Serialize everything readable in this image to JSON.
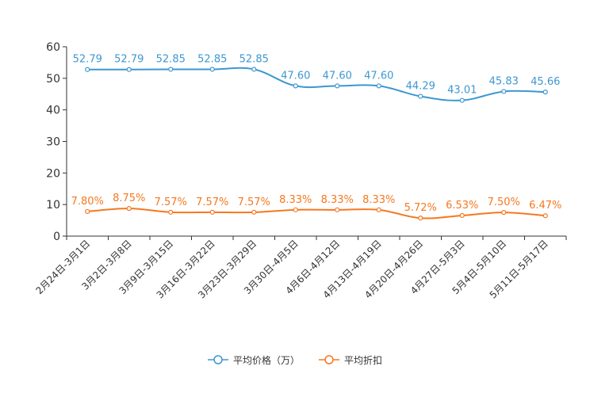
{
  "chart_data": {
    "type": "line",
    "categories": [
      "2月24日-3月1日",
      "3月2日-3月8日",
      "3月9日-3月15日",
      "3月16日-3月22日",
      "3月23日-3月29日",
      "3月30日-4月5日",
      "4月6日-4月12日",
      "4月13日-4月19日",
      "4月20日-4月26日",
      "4月27日-5月3日",
      "5月4日-5月10日",
      "5月11日-5月17日"
    ],
    "series": [
      {
        "name": "平均价格（万）",
        "color": "#3d97d1",
        "values": [
          52.79,
          52.79,
          52.85,
          52.85,
          52.85,
          47.6,
          47.6,
          47.6,
          44.29,
          43.01,
          45.83,
          45.66
        ],
        "labels": [
          "52.79",
          "52.79",
          "52.85",
          "52.85",
          "52.85",
          "47.60",
          "47.60",
          "47.60",
          "44.29",
          "43.01",
          "45.83",
          "45.66"
        ]
      },
      {
        "name": "平均折扣",
        "color": "#f5781f",
        "values": [
          7.8,
          8.75,
          7.57,
          7.57,
          7.57,
          8.33,
          8.33,
          8.33,
          5.72,
          6.53,
          7.5,
          6.47
        ],
        "labels": [
          "7.80%",
          "8.75%",
          "7.57%",
          "7.57%",
          "7.57%",
          "8.33%",
          "8.33%",
          "8.33%",
          "5.72%",
          "6.53%",
          "7.50%",
          "6.47%"
        ]
      }
    ],
    "ylim": [
      0,
      60
    ],
    "yticks": [
      0,
      10,
      20,
      30,
      40,
      50,
      60
    ],
    "xlabel": "",
    "ylabel": "",
    "grid": false,
    "legend_position": "bottom"
  },
  "legend": {
    "price_label": "平均价格（万）",
    "discount_label": "平均折扣"
  }
}
